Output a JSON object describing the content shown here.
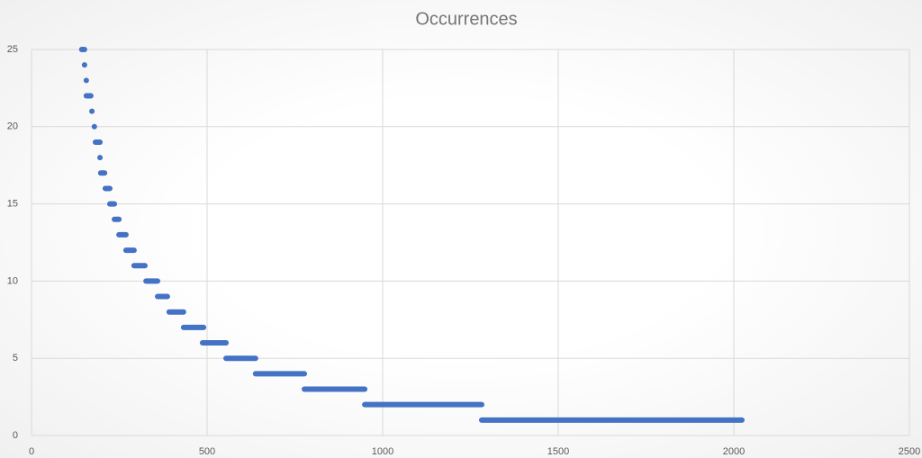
{
  "chart_data": {
    "type": "scatter",
    "title": "Occurrences",
    "values": [
      25,
      24,
      23,
      22,
      21,
      20,
      19,
      18,
      17,
      16,
      15,
      14,
      13,
      12,
      11,
      10,
      9,
      8,
      7,
      6,
      5,
      4,
      3,
      2,
      1
    ],
    "x_start": [
      143,
      151,
      156,
      156,
      172,
      179,
      182,
      195,
      197,
      210,
      223,
      236,
      249,
      269,
      292,
      326,
      359,
      392,
      433,
      487,
      554,
      638,
      777,
      949,
      1282
    ],
    "x_end": [
      151,
      151,
      156,
      169,
      172,
      179,
      195,
      195,
      208,
      223,
      236,
      249,
      269,
      292,
      323,
      359,
      387,
      433,
      490,
      554,
      638,
      777,
      949,
      1282,
      2023
    ],
    "color": "#4472c4",
    "xlim": [
      0,
      2500
    ],
    "xticks": [
      0,
      500,
      1000,
      1500,
      2000,
      2500
    ],
    "ylim": [
      0,
      25
    ],
    "yticks": [
      0,
      5,
      10,
      15,
      20,
      25
    ],
    "grid": true
  }
}
